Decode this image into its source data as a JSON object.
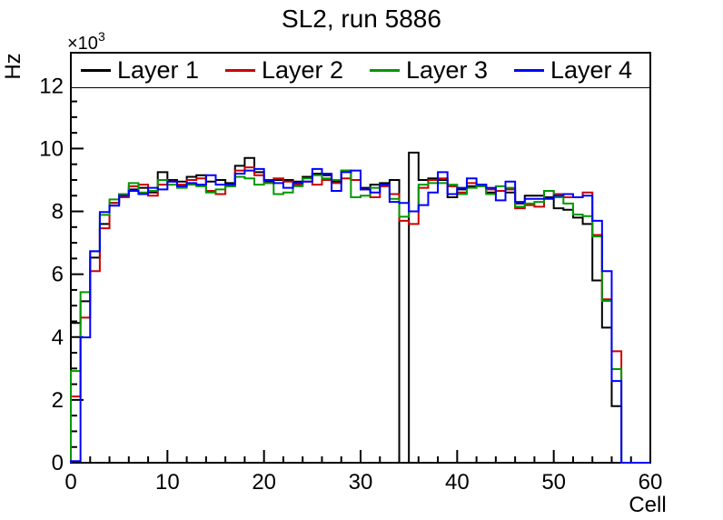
{
  "chart": {
    "title": "SL2, run 5886",
    "y_axis_title": "Hz",
    "x_axis_title": "Cell",
    "y_scale_base": "×10",
    "y_scale_exponent": "3"
  },
  "legend": {
    "position": "top",
    "entries": [
      {
        "label": "Layer 1",
        "color": "#000000"
      },
      {
        "label": "Layer 2",
        "color": "#cc0000"
      },
      {
        "label": "Layer 3",
        "color": "#009900"
      },
      {
        "label": "Layer 4",
        "color": "#0000ff"
      }
    ]
  },
  "chart_data": {
    "type": "line",
    "style": "step-histogram",
    "title": "SL2, run 5886",
    "xlabel": "Cell",
    "ylabel": "Hz",
    "xlim": [
      0,
      60
    ],
    "ylim": [
      0,
      13050
    ],
    "bins": 60,
    "bin_width": 1,
    "grid": false,
    "legend_position": "top",
    "x_ticks": [
      0,
      10,
      20,
      30,
      40,
      50,
      60
    ],
    "x_minor_tick_step": 2,
    "y_ticks": [
      0,
      2,
      4,
      6,
      8,
      10,
      12
    ],
    "y_tick_unit_multiplier": 1000,
    "y_minor_tick_step": 500,
    "series": [
      {
        "name": "Layer 1",
        "color": "#000000",
        "values": [
          4450,
          5140,
          6530,
          7600,
          8270,
          8550,
          8700,
          8750,
          8600,
          9250,
          9000,
          8950,
          9100,
          9150,
          8950,
          9000,
          8900,
          9450,
          9700,
          9250,
          8950,
          9000,
          9000,
          8950,
          9100,
          9200,
          9150,
          8950,
          9300,
          9000,
          8750,
          8850,
          8900,
          9000,
          0,
          9870,
          9000,
          9050,
          9000,
          8450,
          8700,
          8800,
          8850,
          8600,
          8650,
          8600,
          8250,
          8500,
          8500,
          8450,
          8100,
          8050,
          7800,
          7600,
          5800,
          4300,
          1800,
          0,
          0,
          0
        ]
      },
      {
        "name": "Layer 2",
        "color": "#cc0000",
        "values": [
          2110,
          4620,
          6100,
          7460,
          8270,
          8450,
          8800,
          8850,
          8500,
          8850,
          8950,
          8850,
          9000,
          9050,
          8650,
          8550,
          8800,
          9300,
          9400,
          9150,
          8900,
          9050,
          8950,
          8850,
          8950,
          8850,
          9000,
          8900,
          9050,
          9000,
          8700,
          8450,
          8800,
          8550,
          7700,
          7600,
          8750,
          9000,
          9050,
          8800,
          8600,
          8900,
          8800,
          8700,
          8650,
          8700,
          8100,
          8200,
          8150,
          8650,
          8550,
          8450,
          8450,
          8600,
          7250,
          5200,
          3550,
          0,
          0,
          0
        ]
      },
      {
        "name": "Layer 3",
        "color": "#009900",
        "values": [
          2920,
          5430,
          6730,
          7890,
          8380,
          8550,
          8900,
          8600,
          8650,
          9000,
          8850,
          8750,
          8850,
          8800,
          8600,
          8700,
          8800,
          9100,
          9050,
          8850,
          8900,
          8550,
          8600,
          8800,
          9050,
          9150,
          9050,
          9000,
          9300,
          8450,
          8500,
          8750,
          8850,
          8400,
          7830,
          8000,
          8850,
          8900,
          8900,
          8850,
          8550,
          8750,
          8800,
          8550,
          8800,
          8750,
          8150,
          8250,
          8300,
          8650,
          8450,
          8250,
          7900,
          7850,
          7200,
          5150,
          2980,
          0,
          0,
          0
        ]
      },
      {
        "name": "Layer 4",
        "color": "#0000ff",
        "values": [
          50,
          3990,
          6730,
          7980,
          8180,
          8500,
          8650,
          8550,
          8750,
          8700,
          8950,
          8800,
          8900,
          8850,
          9150,
          8850,
          8850,
          9200,
          9300,
          9350,
          9000,
          8900,
          8750,
          8900,
          8950,
          9350,
          9200,
          8650,
          9250,
          9300,
          8700,
          8600,
          8850,
          8300,
          8270,
          8000,
          8200,
          8600,
          9250,
          8550,
          8750,
          9050,
          8850,
          8750,
          8350,
          8950,
          8300,
          8400,
          8400,
          8400,
          8500,
          8550,
          8450,
          8500,
          7700,
          6100,
          2600,
          0,
          0,
          0
        ]
      }
    ]
  }
}
